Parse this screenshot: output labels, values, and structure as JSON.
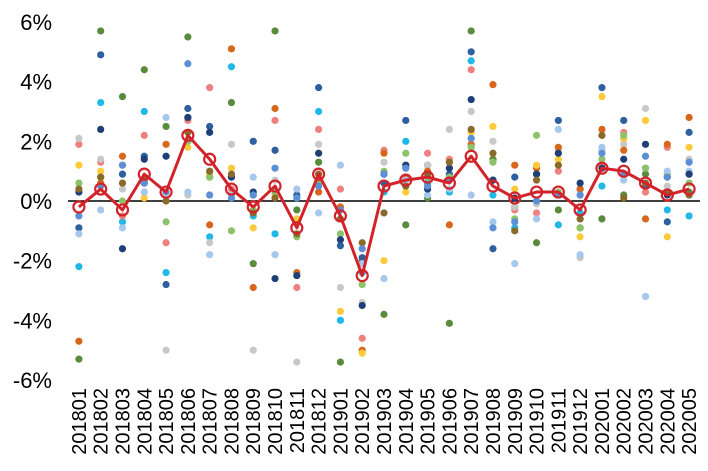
{
  "chart_data": {
    "type": "scatter",
    "title": "",
    "xlabel": "",
    "ylabel": "",
    "ylim": [
      -6,
      6
    ],
    "y_ticks": [
      -6,
      -4,
      -2,
      0,
      2,
      4,
      6
    ],
    "y_tick_labels": [
      "-6%",
      "-4%",
      "-2%",
      "0%",
      "2%",
      "4%",
      "6%"
    ],
    "categories": [
      "201801",
      "201802",
      "201803",
      "201804",
      "201805",
      "201806",
      "201807",
      "201808",
      "201809",
      "201810",
      "201811",
      "201812",
      "201901",
      "201902",
      "201903",
      "201904",
      "201905",
      "201906",
      "201907",
      "201908",
      "201909",
      "201910",
      "201911",
      "201912",
      "202001",
      "202002",
      "202003",
      "202004",
      "202005"
    ],
    "grid": false,
    "legend": "none",
    "series": [
      {
        "color": "#d2232a",
        "type": "line",
        "values": [
          -0.2,
          0.4,
          -0.3,
          0.9,
          0.3,
          2.2,
          1.4,
          0.4,
          -0.2,
          0.5,
          -0.9,
          0.9,
          -0.5,
          -2.5,
          0.5,
          0.7,
          0.8,
          0.6,
          1.5,
          0.5,
          0.1,
          0.3,
          0.3,
          -0.3,
          1.1,
          1.0,
          0.6,
          0.2,
          0.4
        ]
      },
      {
        "color": "#5a8a3c",
        "values": [
          -5.3,
          5.7,
          3.5,
          4.4,
          2.5,
          5.5,
          0.8,
          3.3,
          -2.1,
          5.7,
          -0.3,
          1.3,
          -5.4,
          -2.0,
          -3.8,
          -0.8,
          0.1,
          -4.1,
          5.7,
          1.4,
          -0.2,
          -1.4,
          -0.3,
          -0.9,
          -0.6,
          0.2,
          0.9,
          0.8,
          0.3
        ]
      },
      {
        "color": "#2e5f9e",
        "values": [
          -0.9,
          4.9,
          0.9,
          1.5,
          -2.8,
          3.1,
          2.5,
          0.8,
          2.0,
          1.7,
          0.2,
          3.8,
          -1.5,
          -1.9,
          0.6,
          2.7,
          1.2,
          0.9,
          5.0,
          -1.6,
          0.8,
          0.9,
          2.7,
          0.4,
          3.8,
          2.7,
          0.5,
          -0.7,
          2.3
        ]
      },
      {
        "color": "#1fb8e8",
        "values": [
          -2.2,
          3.3,
          -0.7,
          3.0,
          -2.4,
          2.0,
          -1.2,
          4.5,
          -0.5,
          -1.1,
          0.1,
          3.0,
          -4.0,
          -2.4,
          0.3,
          2.0,
          0.6,
          0.3,
          4.7,
          0.2,
          -0.9,
          0.0,
          -0.8,
          -0.4,
          0.5,
          2.1,
          1.1,
          -0.3,
          -0.5
        ]
      },
      {
        "color": "#f08080",
        "values": [
          1.9,
          1.3,
          -0.5,
          2.2,
          -1.4,
          2.7,
          3.8,
          0.4,
          0.2,
          2.7,
          -2.9,
          2.4,
          0.4,
          -4.6,
          1.7,
          1.1,
          1.6,
          1.4,
          4.4,
          0.7,
          -0.3,
          -0.4,
          1.0,
          0.2,
          1.2,
          2.3,
          0.3,
          1.8,
          0.9
        ]
      },
      {
        "color": "#c8c8c8",
        "values": [
          2.1,
          1.4,
          0.4,
          0.3,
          -5.0,
          0.2,
          -1.4,
          1.9,
          -5.0,
          0.7,
          -5.4,
          1.9,
          -2.9,
          -3.4,
          1.3,
          1.2,
          1.2,
          2.4,
          3.0,
          2.0,
          -0.2,
          -0.1,
          1.7,
          -1.9,
          1.7,
          1.9,
          3.1,
          0.5,
          1.4
        ]
      },
      {
        "color": "#d8671e",
        "values": [
          -4.7,
          0.6,
          1.5,
          0.6,
          1.9,
          2.8,
          -0.8,
          5.1,
          -2.9,
          3.1,
          -2.4,
          0.3,
          -0.2,
          -5.0,
          1.6,
          0.8,
          1.0,
          -0.8,
          1.9,
          3.9,
          1.2,
          1.1,
          1.8,
          0.4,
          2.4,
          1.7,
          -0.6,
          1.9,
          2.8
        ]
      },
      {
        "color": "#fbcb3c",
        "values": [
          1.2,
          1.0,
          1.2,
          0.1,
          0.0,
          1.8,
          0.9,
          1.1,
          -0.9,
          0.2,
          -0.6,
          1.6,
          -3.7,
          -5.1,
          -2.0,
          0.3,
          0.8,
          1.3,
          2.3,
          2.5,
          0.4,
          1.2,
          1.4,
          -1.2,
          3.5,
          2.1,
          2.7,
          -1.2,
          1.8
        ]
      },
      {
        "color": "#8ec26a",
        "values": [
          0.6,
          0.8,
          0.0,
          0.7,
          -0.7,
          2.0,
          0.8,
          -1.0,
          -0.3,
          0.3,
          -1.2,
          0.6,
          -1.1,
          -2.8,
          1.0,
          1.6,
          0.8,
          0.8,
          1.8,
          1.3,
          -0.6,
          2.2,
          0.3,
          -0.9,
          1.4,
          2.2,
          1.1,
          0.9,
          0.6
        ]
      },
      {
        "color": "#a6c8ec",
        "values": [
          -1.1,
          -0.3,
          -0.9,
          0.3,
          2.8,
          0.3,
          -1.8,
          0.2,
          0.8,
          -1.8,
          0.4,
          -0.4,
          1.2,
          -2.1,
          -2.6,
          0.7,
          0.2,
          0.4,
          0.2,
          -0.7,
          -2.1,
          -0.6,
          2.4,
          -1.8,
          1.8,
          0.7,
          -3.2,
          1.0,
          1.0
        ]
      },
      {
        "color": "#1f3f78",
        "values": [
          0.3,
          2.4,
          -1.6,
          1.4,
          1.5,
          2.8,
          2.3,
          0.8,
          0.3,
          -2.6,
          -2.5,
          1.6,
          -1.3,
          -3.5,
          0.9,
          1.2,
          0.4,
          1.1,
          3.4,
          0.7,
          0.1,
          0.9,
          1.6,
          0.6,
          1.1,
          1.4,
          1.9,
          0.2,
          0.9
        ]
      },
      {
        "color": "#8a6a2a",
        "values": [
          0.4,
          0.8,
          0.6,
          0.7,
          0.0,
          2.3,
          1.0,
          0.9,
          -0.4,
          0.1,
          -1.1,
          0.9,
          -0.6,
          -1.4,
          -0.4,
          0.5,
          0.9,
          1.3,
          2.4,
          1.6,
          -1.0,
          0.7,
          1.2,
          -0.6,
          2.2,
          0.1,
          0.6,
          0.3,
          0.2
        ]
      },
      {
        "color": "#5b8fd6",
        "values": [
          -0.5,
          0.5,
          1.2,
          0.6,
          0.3,
          4.6,
          0.2,
          0.1,
          0.2,
          1.1,
          0.1,
          0.5,
          -0.3,
          -1.6,
          0.9,
          1.1,
          0.5,
          0.7,
          2.1,
          -0.9,
          -0.7,
          0.0,
          0.2,
          0.2,
          1.6,
          0.9,
          1.5,
          0.8,
          1.3
        ]
      }
    ]
  }
}
